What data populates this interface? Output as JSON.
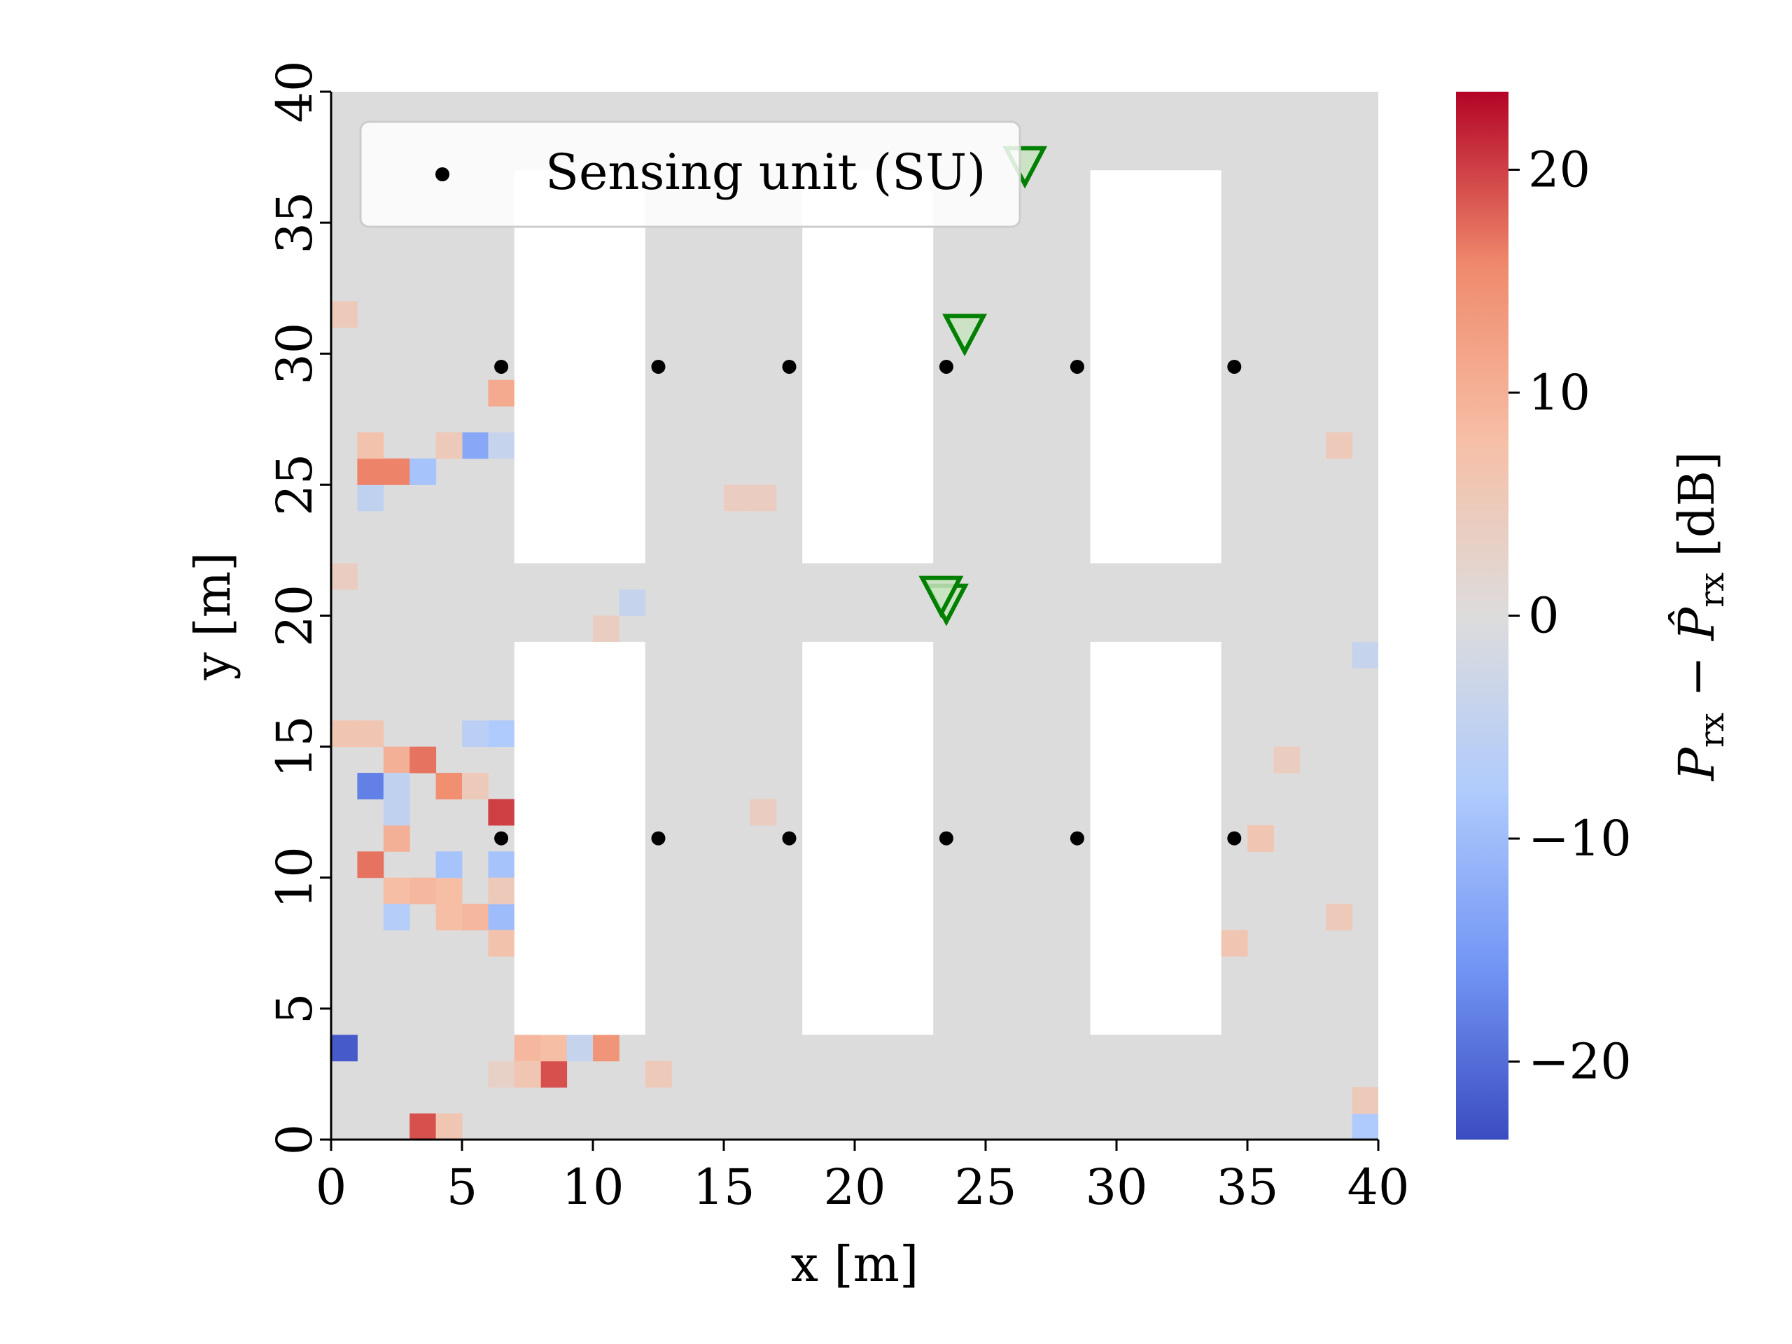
{
  "chart_data": {
    "type": "heatmap",
    "xlabel": "x [m]",
    "ylabel": "y [m]",
    "xlim": [
      0,
      40
    ],
    "ylim": [
      0,
      40
    ],
    "x_ticks": [
      "0",
      "5",
      "10",
      "15",
      "20",
      "25",
      "30",
      "35",
      "40"
    ],
    "y_ticks": [
      "0",
      "5",
      "10",
      "15",
      "20",
      "25",
      "30",
      "35",
      "40"
    ],
    "grid": false,
    "grid_resolution_m": 1,
    "colorbar": {
      "label_parts": [
        "P",
        "rx",
        " − ",
        "P̂",
        "rx",
        " [dB]"
      ],
      "range": [
        -23.5,
        23.5
      ],
      "ticks": [
        "−20",
        "−10",
        "0",
        "10",
        "20"
      ],
      "tick_values": [
        -20,
        -10,
        0,
        10,
        20
      ],
      "colormap": "coolwarm",
      "colors": [
        "#3b4cc0",
        "#7396f5",
        "#b0cbfc",
        "#dddcdc",
        "#f6bfa6",
        "#f08a6c",
        "#b40426"
      ]
    },
    "buildings": [
      {
        "x": [
          7,
          12
        ],
        "y": [
          22,
          37
        ]
      },
      {
        "x": [
          18,
          23
        ],
        "y": [
          22,
          37
        ]
      },
      {
        "x": [
          29,
          34
        ],
        "y": [
          22,
          37
        ]
      },
      {
        "x": [
          7,
          12
        ],
        "y": [
          4,
          19
        ]
      },
      {
        "x": [
          18,
          23
        ],
        "y": [
          4,
          19
        ]
      },
      {
        "x": [
          29,
          34
        ],
        "y": [
          4,
          19
        ]
      }
    ],
    "background_value": 0,
    "cells": [
      {
        "x": 0,
        "y": 3,
        "v": -22
      },
      {
        "x": 3,
        "y": 0,
        "v": 19
      },
      {
        "x": 4,
        "y": 0,
        "v": 6
      },
      {
        "x": 8,
        "y": 2,
        "v": 19
      },
      {
        "x": 7,
        "y": 3,
        "v": 9
      },
      {
        "x": 8,
        "y": 3,
        "v": 8
      },
      {
        "x": 9,
        "y": 3,
        "v": -4
      },
      {
        "x": 10,
        "y": 3,
        "v": 14
      },
      {
        "x": 7,
        "y": 2,
        "v": 6
      },
      {
        "x": 6,
        "y": 2,
        "v": 3
      },
      {
        "x": 12,
        "y": 2,
        "v": 5
      },
      {
        "x": 39,
        "y": 0,
        "v": -8
      },
      {
        "x": 39,
        "y": 1,
        "v": 5
      },
      {
        "x": 1,
        "y": 10,
        "v": 17
      },
      {
        "x": 2,
        "y": 11,
        "v": 10
      },
      {
        "x": 2,
        "y": 9,
        "v": 8
      },
      {
        "x": 3,
        "y": 9,
        "v": 9
      },
      {
        "x": 4,
        "y": 9,
        "v": 8
      },
      {
        "x": 2,
        "y": 8,
        "v": -7
      },
      {
        "x": 4,
        "y": 10,
        "v": -9
      },
      {
        "x": 4,
        "y": 8,
        "v": 8
      },
      {
        "x": 5,
        "y": 8,
        "v": 9
      },
      {
        "x": 6,
        "y": 8,
        "v": -10
      },
      {
        "x": 6,
        "y": 10,
        "v": -9
      },
      {
        "x": 6,
        "y": 7,
        "v": 7
      },
      {
        "x": 6,
        "y": 9,
        "v": 5
      },
      {
        "x": 6,
        "y": 12,
        "v": 20
      },
      {
        "x": 1,
        "y": 13,
        "v": -18
      },
      {
        "x": 2,
        "y": 14,
        "v": 10
      },
      {
        "x": 3,
        "y": 14,
        "v": 17
      },
      {
        "x": 4,
        "y": 13,
        "v": 15
      },
      {
        "x": 2,
        "y": 13,
        "v": -5
      },
      {
        "x": 2,
        "y": 12,
        "v": -5
      },
      {
        "x": 5,
        "y": 13,
        "v": 5
      },
      {
        "x": 6,
        "y": 15,
        "v": -8
      },
      {
        "x": 5,
        "y": 15,
        "v": -6
      },
      {
        "x": 0,
        "y": 15,
        "v": 6
      },
      {
        "x": 1,
        "y": 15,
        "v": 6
      },
      {
        "x": 1,
        "y": 24,
        "v": -5
      },
      {
        "x": 1,
        "y": 25,
        "v": 16
      },
      {
        "x": 2,
        "y": 25,
        "v": 16
      },
      {
        "x": 3,
        "y": 25,
        "v": -9
      },
      {
        "x": 1,
        "y": 26,
        "v": 7
      },
      {
        "x": 5,
        "y": 26,
        "v": -13
      },
      {
        "x": 6,
        "y": 26,
        "v": -4
      },
      {
        "x": 6,
        "y": 28,
        "v": 11
      },
      {
        "x": 4,
        "y": 26,
        "v": 5
      },
      {
        "x": 0,
        "y": 31,
        "v": 5
      },
      {
        "x": 0,
        "y": 21,
        "v": 4
      },
      {
        "x": 34,
        "y": 7,
        "v": 6
      },
      {
        "x": 35,
        "y": 11,
        "v": 6
      },
      {
        "x": 38,
        "y": 8,
        "v": 5
      },
      {
        "x": 38,
        "y": 26,
        "v": 5
      },
      {
        "x": 39,
        "y": 18,
        "v": -4
      },
      {
        "x": 36,
        "y": 14,
        "v": 4
      },
      {
        "x": 10,
        "y": 19,
        "v": 4
      },
      {
        "x": 11,
        "y": 20,
        "v": -4
      },
      {
        "x": 15,
        "y": 24,
        "v": 4
      },
      {
        "x": 16,
        "y": 24,
        "v": 4
      },
      {
        "x": 16,
        "y": 12,
        "v": 4
      }
    ],
    "series": [
      {
        "name": "Sensing unit (SU)",
        "type": "scatter",
        "color": "#000000",
        "x": [
          6.5,
          12.5,
          17.5,
          23.5,
          28.5,
          34.5,
          6.5,
          12.5,
          17.5,
          23.5,
          28.5,
          34.5
        ],
        "y": [
          29.5,
          29.5,
          29.5,
          29.5,
          29.5,
          29.5,
          11.5,
          11.5,
          11.5,
          11.5,
          11.5,
          11.5
        ]
      },
      {
        "type": "marker",
        "marker": "triangle-down",
        "color": "#008000",
        "x": [
          26.5,
          24.2,
          23.5,
          23.3
        ],
        "y": [
          37.3,
          30.9,
          20.6,
          20.9
        ]
      }
    ],
    "legend": {
      "placement": "upper-left",
      "entries": [
        "Sensing unit (SU)"
      ]
    }
  }
}
